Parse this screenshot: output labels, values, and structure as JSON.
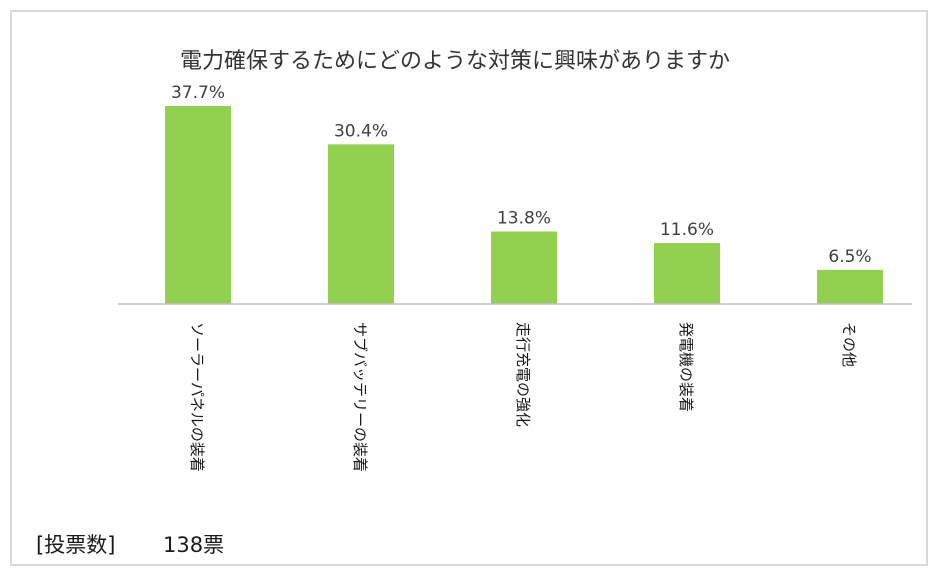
{
  "chart_data": {
    "type": "bar",
    "title": "電力確保するためにどのような対策に興味がありますか",
    "categories": [
      "ソーラーパネルの装着",
      "サブバッテリーの装着",
      "走行充電の強化",
      "発電機の装着",
      "その他"
    ],
    "values": [
      37.7,
      30.4,
      13.8,
      11.6,
      6.5
    ],
    "data_labels": [
      "37.7%",
      "30.4%",
      "13.8%",
      "11.6%",
      "6.5%"
    ],
    "unit": "%",
    "bar_color": "#92d050",
    "axis_color": "#bfbfbf",
    "grid": false,
    "legend": "none",
    "ylim": [
      0,
      37.7
    ]
  },
  "footer": {
    "label": "[投票数]",
    "value": "138票"
  }
}
